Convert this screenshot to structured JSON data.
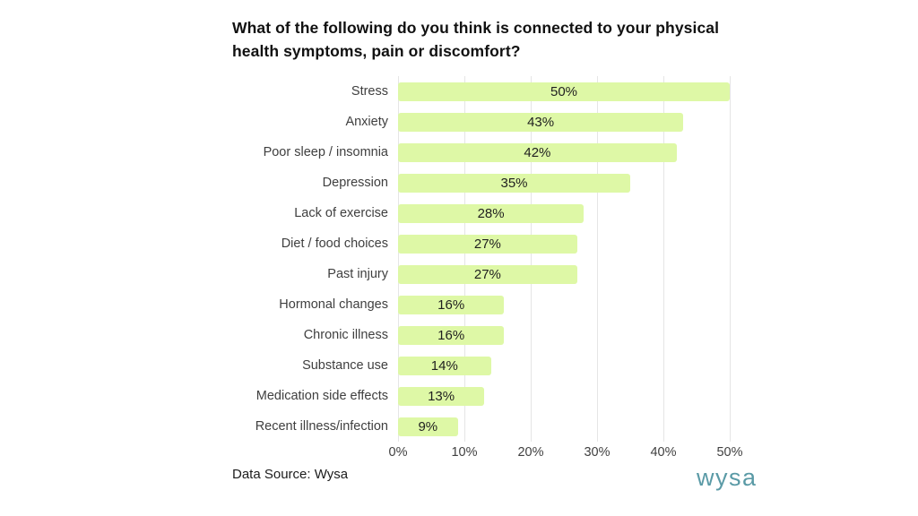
{
  "title": "What of the following do you think is connected to your physical health symptoms, pain or discomfort?",
  "footer": {
    "data_source": "Data Source: Wysa",
    "logo_text": "wysa"
  },
  "colors": {
    "page_bg": "#ffffff",
    "bar_fill": "#def8a6",
    "title_text": "#111111",
    "category_text": "#3f3f3f",
    "value_text": "#1f1f1f",
    "gridline": "#e5e5e5",
    "logo_teal": "#5a9aa6"
  },
  "chart_data": {
    "type": "bar",
    "orientation": "horizontal",
    "title": "What of the following do you think is connected to your physical health symptoms, pain or discomfort?",
    "categories": [
      "Stress",
      "Anxiety",
      "Poor sleep / insomnia",
      "Depression",
      "Lack of exercise",
      "Diet / food choices",
      "Past injury",
      "Hormonal changes",
      "Chronic illness",
      "Substance use",
      "Medication side effects",
      "Recent illness/infection"
    ],
    "values": [
      50,
      43,
      42,
      35,
      28,
      27,
      27,
      16,
      16,
      14,
      13,
      9
    ],
    "value_labels": [
      "50%",
      "43%",
      "42%",
      "35%",
      "28%",
      "27%",
      "27%",
      "16%",
      "16%",
      "14%",
      "13%",
      "9%"
    ],
    "x_ticks": [
      "0%",
      "10%",
      "20%",
      "30%",
      "40%",
      "50%"
    ],
    "x_tick_values": [
      0,
      10,
      20,
      30,
      40,
      50
    ],
    "xlim": [
      0,
      50
    ],
    "xlabel": "",
    "ylabel": "",
    "grid": "vertical",
    "value_label_position": "center-of-bar",
    "legend": "none"
  }
}
